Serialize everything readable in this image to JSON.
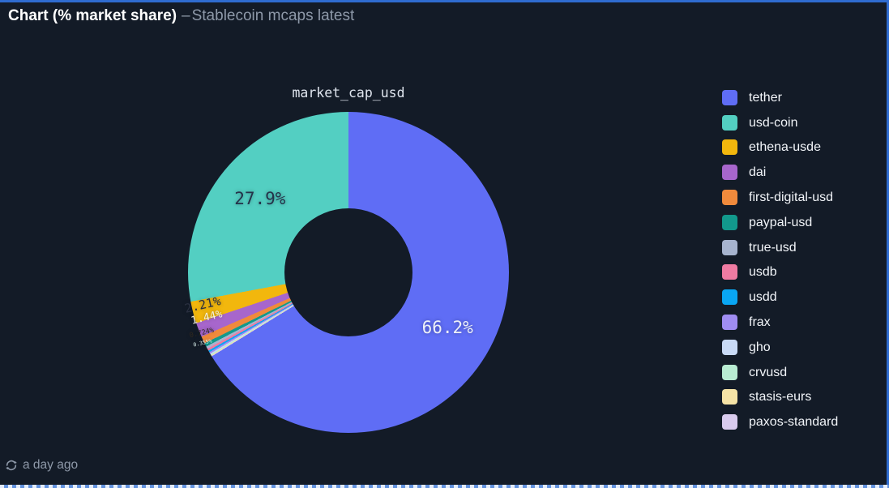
{
  "header": {
    "title": "Chart (% market share)",
    "separator": "–",
    "subtitle": "Stablecoin mcaps latest"
  },
  "footer": {
    "refreshed_text": "a day ago"
  },
  "colors": {
    "panel_background": "#131b27",
    "panel_border": "#2f6cd0",
    "header_title": "#ffffff",
    "header_subtitle": "#8e99a9",
    "legend_text": "#f2f5f9",
    "footer_text": "#8e99a9"
  },
  "chart_data": {
    "type": "pie",
    "title": "market_cap_usd",
    "donut": true,
    "legend_position": "right",
    "start_angle": "top",
    "note": "clockwise from top: tether first, then remaining slices in reverse legend order, usd-coin last back to top",
    "series": [
      {
        "label": "tether",
        "value": 66.2,
        "color": "#5f6df5",
        "display_label": "66.2%",
        "label_color": "#edf0f8"
      },
      {
        "label": "usd-coin",
        "value": 27.9,
        "color": "#53cfc2",
        "display_label": "27.9%",
        "label_color": "#25334a"
      },
      {
        "label": "ethena-usde",
        "value": 2.21,
        "color": "#f2b70d",
        "display_label": "2.21%",
        "label_color": "#2a3040"
      },
      {
        "label": "dai",
        "value": 1.44,
        "color": "#a766cc",
        "display_label": "1.44%",
        "label_color": "#f4efdf"
      },
      {
        "label": "first-digital-usd",
        "value": 0.724,
        "color": "#f08a3c",
        "display_label": "0.724%",
        "label_color": "#30281e"
      },
      {
        "label": "paypal-usd",
        "value": 0.355,
        "color": "#12998c",
        "display_label": "0.355%",
        "label_color": "#d9f0ec"
      },
      {
        "label": "true-usd",
        "value": 0.24,
        "color": "#a7b4cf",
        "display_label": ""
      },
      {
        "label": "usdb",
        "value": 0.22,
        "color": "#ef7ba2",
        "display_label": ""
      },
      {
        "label": "usdd",
        "value": 0.18,
        "color": "#09a6f3",
        "display_label": ""
      },
      {
        "label": "frax",
        "value": 0.16,
        "color": "#a08df2",
        "display_label": ""
      },
      {
        "label": "gho",
        "value": 0.1,
        "color": "#c9daf6",
        "display_label": ""
      },
      {
        "label": "crvusd",
        "value": 0.09,
        "color": "#b8ecd2",
        "display_label": ""
      },
      {
        "label": "stasis-eurs",
        "value": 0.07,
        "color": "#f5e3a6",
        "display_label": ""
      },
      {
        "label": "paxos-standard",
        "value": 0.056,
        "color": "#d9cbee",
        "display_label": ""
      }
    ]
  }
}
